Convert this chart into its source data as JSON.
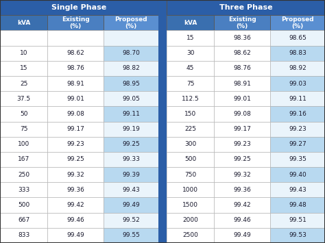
{
  "title_single": "Single Phase",
  "title_three": "Three Phase",
  "col_headers": [
    "kVA",
    "Existing\n(%)",
    "Proposed\n(%)"
  ],
  "single_phase": [
    [
      "",
      "",
      ""
    ],
    [
      "10",
      "98.62",
      "98.70"
    ],
    [
      "15",
      "98.76",
      "98.82"
    ],
    [
      "25",
      "98.91",
      "98.95"
    ],
    [
      "37.5",
      "99.01",
      "99.05"
    ],
    [
      "50",
      "99.08",
      "99.11"
    ],
    [
      "75",
      "99.17",
      "99.19"
    ],
    [
      "100",
      "99.23",
      "99.25"
    ],
    [
      "167",
      "99.25",
      "99.33"
    ],
    [
      "250",
      "99.32",
      "99.39"
    ],
    [
      "333",
      "99.36",
      "99.43"
    ],
    [
      "500",
      "99.42",
      "99.49"
    ],
    [
      "667",
      "99.46",
      "99.52"
    ],
    [
      "833",
      "99.49",
      "99.55"
    ]
  ],
  "three_phase": [
    [
      "15",
      "98.36",
      "98.65"
    ],
    [
      "30",
      "98.62",
      "98.83"
    ],
    [
      "45",
      "98.76",
      "98.92"
    ],
    [
      "75",
      "98.91",
      "99.03"
    ],
    [
      "112.5",
      "99.01",
      "99.11"
    ],
    [
      "150",
      "99.08",
      "99.16"
    ],
    [
      "225",
      "99.17",
      "99.23"
    ],
    [
      "300",
      "99.23",
      "99.27"
    ],
    [
      "500",
      "99.25",
      "99.35"
    ],
    [
      "750",
      "99.32",
      "99.40"
    ],
    [
      "1000",
      "99.36",
      "99.43"
    ],
    [
      "1500",
      "99.42",
      "99.48"
    ],
    [
      "2000",
      "99.46",
      "99.51"
    ],
    [
      "2500",
      "99.49",
      "99.53"
    ]
  ],
  "color_header_dark": "#2B5EA7",
  "color_header_sub": "#4A7FC1",
  "color_row_white": "#FFFFFF",
  "color_row_blue": "#D6E8F7",
  "color_proposed_light": "#B8D9F0",
  "color_proposed_white": "#EAF4FB",
  "color_divider": "#2B5EA7",
  "color_text_header": "#FFFFFF",
  "color_text_body": "#1A1A2E",
  "color_border_inner": "#AAAAAA",
  "color_border_outer": "#333333",
  "color_subheader_kva": "#3A6FAF",
  "color_subheader_exist": "#4A7FC1",
  "color_subheader_prop": "#5A8FD1"
}
